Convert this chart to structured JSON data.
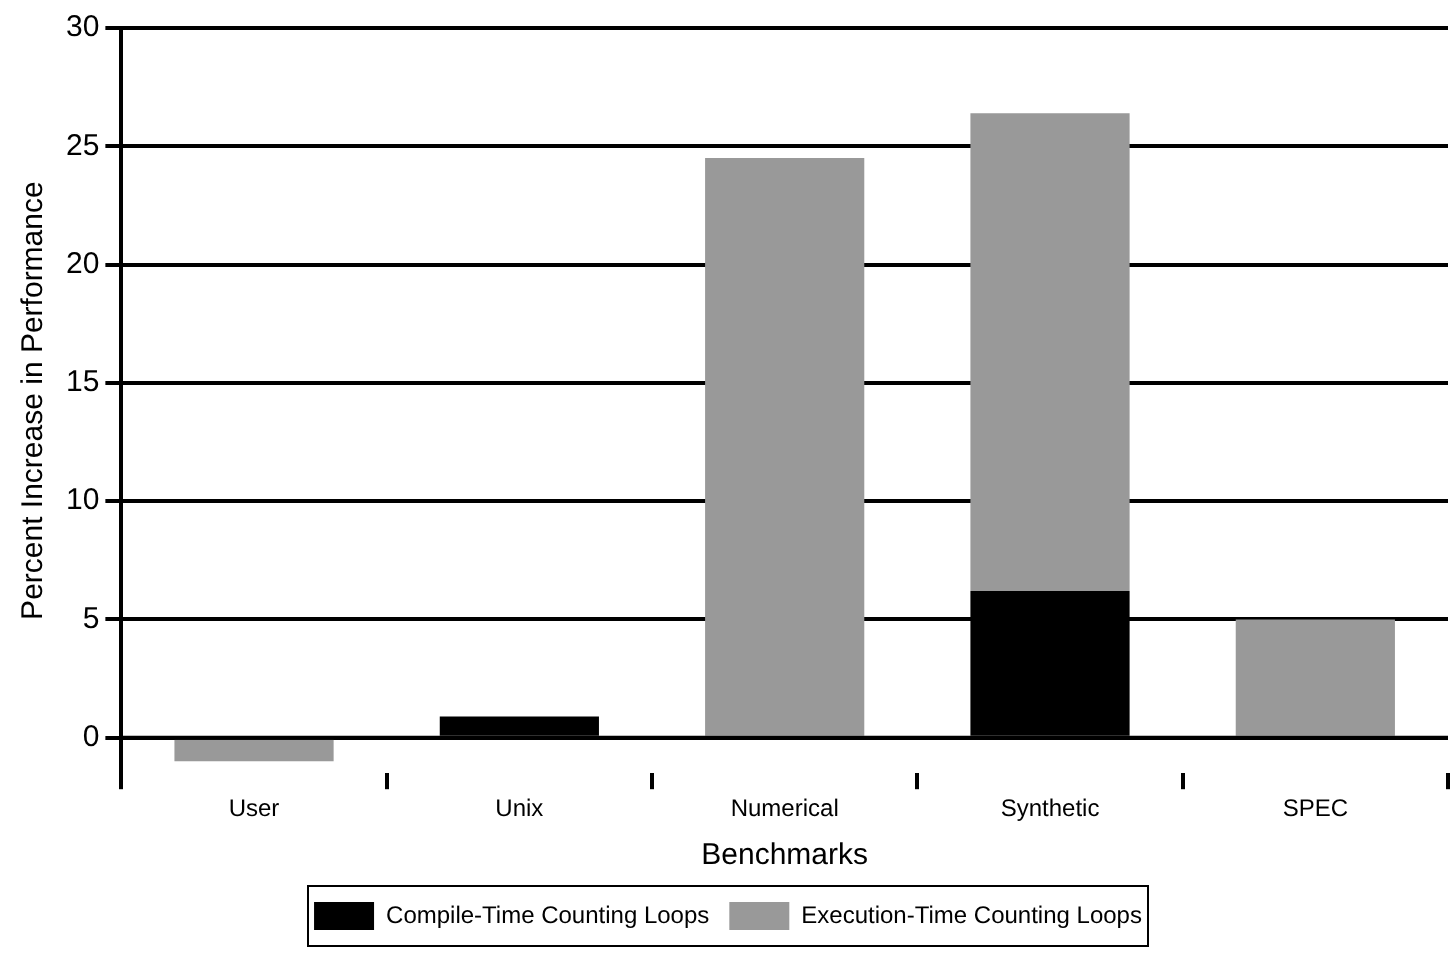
{
  "chart_data": {
    "type": "bar",
    "stacked": true,
    "xlabel": "Benchmarks",
    "ylabel": "Percent Increase in Performance",
    "categories": [
      "User",
      "Unix",
      "Numerical",
      "Synthetic",
      "SPEC"
    ],
    "series": [
      {
        "name": "Compile-Time Counting Loops",
        "color": "#000000",
        "values": [
          null,
          0.9,
          null,
          6.2,
          null
        ]
      },
      {
        "name": "Execution-Time Counting Loops",
        "color": "#999999",
        "values": [
          -1,
          null,
          24.5,
          20.2,
          5
        ]
      }
    ],
    "ylim": [
      -1.5,
      30
    ],
    "yticks": [
      0,
      5,
      10,
      15,
      20,
      25,
      30
    ],
    "grid": "y",
    "legend": "bottom"
  }
}
